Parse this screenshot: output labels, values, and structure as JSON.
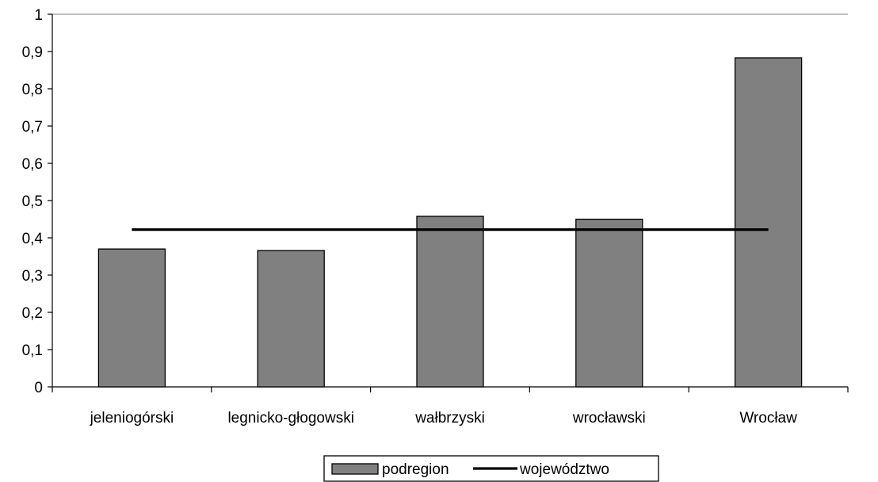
{
  "chart_data": {
    "type": "bar",
    "categories": [
      "jeleniogórski",
      "legnicko-głogowski",
      "wałbrzyski",
      "wrocławski",
      "Wrocław"
    ],
    "series": [
      {
        "name": "podregion",
        "type": "bar",
        "values": [
          0.37,
          0.366,
          0.458,
          0.45,
          0.883
        ],
        "color": "#808080"
      },
      {
        "name": "województwo",
        "type": "line",
        "values": [
          0.422,
          0.422,
          0.422,
          0.422,
          0.422
        ],
        "color": "#000000"
      }
    ],
    "title": "",
    "xlabel": "",
    "ylabel": "",
    "ylim": [
      0,
      1
    ],
    "yticks": [
      0,
      0.1,
      0.2,
      0.3,
      0.4,
      0.5,
      0.6,
      0.7,
      0.8,
      0.9,
      1
    ],
    "ytick_labels": [
      "0",
      "0,1",
      "0,2",
      "0,3",
      "0,4",
      "0,5",
      "0,6",
      "0,7",
      "0,8",
      "0,9",
      "1"
    ],
    "grid": false,
    "legend": {
      "position": "bottom",
      "entries": [
        "podregion",
        "województwo"
      ]
    }
  }
}
